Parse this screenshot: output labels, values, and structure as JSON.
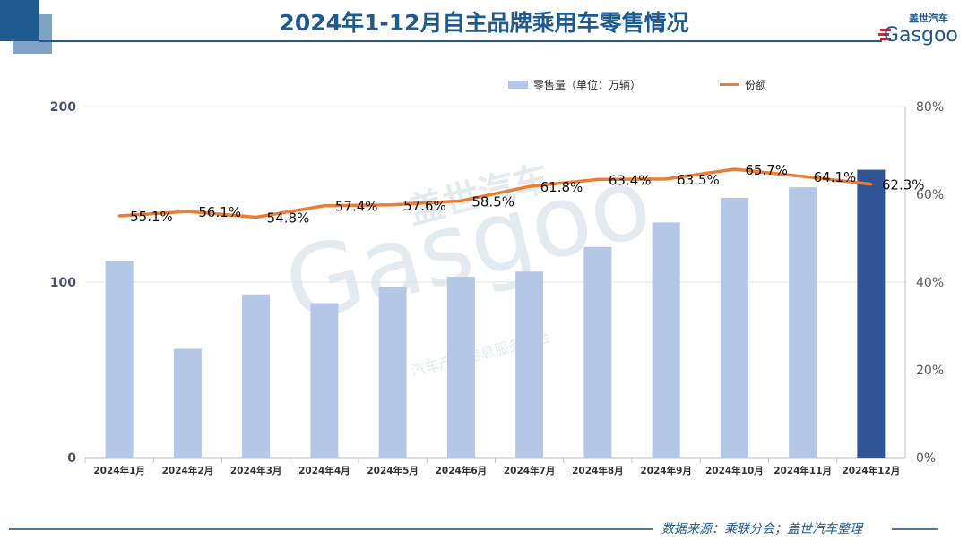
{
  "title": "2024年1-12月自主品牌乘用车零售情况",
  "logo": {
    "text": "Gasgoo",
    "cn": "盖世汽车"
  },
  "watermark": {
    "text": "Gasgoo",
    "cn": "盖世汽车",
    "sub": "汽车产业信息服务平台"
  },
  "footer": "数据来源：乘联分会；盖世汽车整理",
  "colors": {
    "bar": "#b4c7e7",
    "bar_highlight": "#2f5597",
    "line": "#ed7d31",
    "title": "#1f5a8e"
  },
  "chart_data": {
    "type": "bar+line",
    "categories": [
      "2024年1月",
      "2024年2月",
      "2024年3月",
      "2024年4月",
      "2024年5月",
      "2024年6月",
      "2024年7月",
      "2024年8月",
      "2024年9月",
      "2024年10月",
      "2024年11月",
      "2024年12月"
    ],
    "series": [
      {
        "name": "零售量（单位：万辆）",
        "type": "bar",
        "axis": "left",
        "values": [
          112,
          62,
          93,
          88,
          97,
          103,
          106,
          120,
          134,
          148,
          154,
          164
        ]
      },
      {
        "name": "份额",
        "type": "line",
        "axis": "right",
        "values": [
          55.1,
          56.1,
          54.8,
          57.4,
          57.6,
          58.5,
          61.8,
          63.4,
          63.5,
          65.7,
          64.1,
          62.3
        ],
        "labels": [
          "55.1%",
          "56.1%",
          "54.8%",
          "57.4%",
          "57.6%",
          "58.5%",
          "61.8%",
          "63.4%",
          "63.5%",
          "65.7%",
          "64.1%",
          "62.3%"
        ]
      }
    ],
    "ylim_left": [
      0,
      200
    ],
    "yticks_left": [
      "0",
      "100",
      "200"
    ],
    "ylim_right": [
      0,
      80
    ],
    "yticks_right": [
      "0%",
      "20%",
      "40%",
      "60%",
      "80%"
    ],
    "legend": "top",
    "grid": true
  }
}
